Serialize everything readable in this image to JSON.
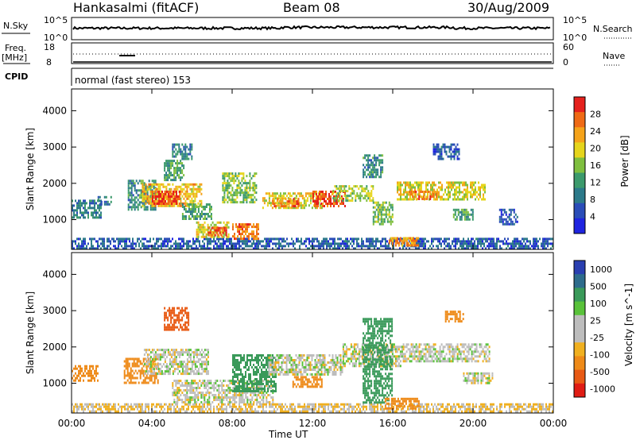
{
  "header": {
    "station": "Hankasalmi (fitACF)",
    "beam": "Beam 08",
    "date": "30/Aug/2009"
  },
  "summary": {
    "left_label_top": "N.Sky",
    "left_scale_top": "10^5",
    "left_scale_bottom": "10^0",
    "right_scale_top": "10^5",
    "right_scale_bottom": "10^0",
    "right_label": "N.Search",
    "freq_label_1": "Freq.",
    "freq_label_2": "[MHz]",
    "freq_top": "18",
    "freq_bottom": "8",
    "nave_top": "60",
    "nave_bottom": "0",
    "nave_label": "Nave",
    "cpid_label": "CPID",
    "cpid_text": "normal (fast stereo) 153"
  },
  "axes": {
    "xlabel": "Time UT",
    "ylabel": "Slant Range [km]"
  },
  "colors": {
    "power": [
      "#1f24e0",
      "#2a4db8",
      "#2c7a8a",
      "#3c9a6c",
      "#7fbf3f",
      "#e6d51c",
      "#f5a31a",
      "#ef6a15",
      "#e5211d"
    ],
    "velocity_pos": [
      "#2a3fb0",
      "#2e6c8c",
      "#3a9a5a",
      "#59c23a"
    ],
    "velocity_grey": "#bdbdbd",
    "velocity_neg": [
      "#f0b020",
      "#ee8a18",
      "#e85a14",
      "#e01c14"
    ]
  },
  "chart_data": [
    {
      "type": "heatmap",
      "name": "power",
      "colorbar_label": "Power [dB]",
      "colorbar_ticks": [
        "4",
        "8",
        "12",
        "16",
        "20",
        "24",
        "28"
      ],
      "x_ticks": [
        "00:00",
        "04:00",
        "08:00",
        "12:00",
        "16:00",
        "20:00",
        "00:00"
      ],
      "y_ticks": [
        "1000",
        "2000",
        "3000",
        "4000"
      ],
      "xlim_hours": [
        0,
        24
      ],
      "ylim_km": [
        180,
        4600
      ],
      "echo_regions": [
        {
          "t0": 0.0,
          "t1": 24.0,
          "r0": 200,
          "r1": 500,
          "power": 6
        },
        {
          "t0": 0.0,
          "t1": 1.5,
          "r0": 1050,
          "r1": 1550,
          "power": 9
        },
        {
          "t0": 1.3,
          "t1": 2.0,
          "r0": 1400,
          "r1": 1650,
          "power": 8
        },
        {
          "t0": 2.8,
          "t1": 4.2,
          "r0": 1300,
          "r1": 2100,
          "power": 10
        },
        {
          "t0": 3.5,
          "t1": 6.5,
          "r0": 1400,
          "r1": 2000,
          "power": 20
        },
        {
          "t0": 4.0,
          "t1": 5.4,
          "r0": 1450,
          "r1": 1800,
          "power": 26
        },
        {
          "t0": 4.6,
          "t1": 5.6,
          "r0": 2100,
          "r1": 2650,
          "power": 12
        },
        {
          "t0": 5.0,
          "t1": 6.0,
          "r0": 2700,
          "r1": 3100,
          "power": 9
        },
        {
          "t0": 5.5,
          "t1": 7.0,
          "r0": 1050,
          "r1": 1450,
          "power": 12
        },
        {
          "t0": 6.2,
          "t1": 7.8,
          "r0": 500,
          "r1": 950,
          "power": 18
        },
        {
          "t0": 6.8,
          "t1": 7.7,
          "r0": 550,
          "r1": 800,
          "power": 26
        },
        {
          "t0": 7.5,
          "t1": 9.2,
          "r0": 1500,
          "r1": 2300,
          "power": 14
        },
        {
          "t0": 8.0,
          "t1": 9.3,
          "r0": 500,
          "r1": 900,
          "power": 24
        },
        {
          "t0": 9.5,
          "t1": 12.5,
          "r0": 1300,
          "r1": 1750,
          "power": 18
        },
        {
          "t0": 10.0,
          "t1": 11.3,
          "r0": 1350,
          "r1": 1600,
          "power": 24
        },
        {
          "t0": 12.0,
          "t1": 13.6,
          "r0": 1400,
          "r1": 1800,
          "power": 26
        },
        {
          "t0": 13.0,
          "t1": 15.0,
          "r0": 1500,
          "r1": 1950,
          "power": 16
        },
        {
          "t0": 14.5,
          "t1": 15.5,
          "r0": 2200,
          "r1": 2800,
          "power": 10
        },
        {
          "t0": 15.0,
          "t1": 16.0,
          "r0": 900,
          "r1": 1500,
          "power": 14
        },
        {
          "t0": 15.8,
          "t1": 17.3,
          "r0": 300,
          "r1": 520,
          "power": 22
        },
        {
          "t0": 16.2,
          "t1": 20.6,
          "r0": 1550,
          "r1": 2050,
          "power": 18
        },
        {
          "t0": 16.8,
          "t1": 18.2,
          "r0": 1550,
          "r1": 1800,
          "power": 24
        },
        {
          "t0": 19.0,
          "t1": 20.0,
          "r0": 1000,
          "r1": 1300,
          "power": 12
        },
        {
          "t0": 18.0,
          "t1": 19.3,
          "r0": 2700,
          "r1": 3100,
          "power": 6
        },
        {
          "t0": 21.3,
          "t1": 22.2,
          "r0": 900,
          "r1": 1300,
          "power": 5
        }
      ]
    },
    {
      "type": "heatmap",
      "name": "velocity",
      "colorbar_label": "Velocity [m s^-1]",
      "colorbar_ticks": [
        "1000",
        "500",
        "100",
        "25",
        "-25",
        "-100",
        "-500",
        "-1000"
      ],
      "x_ticks": [
        "00:00",
        "04:00",
        "08:00",
        "12:00",
        "16:00",
        "20:00",
        "00:00"
      ],
      "y_ticks": [
        "1000",
        "2000",
        "3000",
        "4000"
      ],
      "xlim_hours": [
        0,
        24
      ],
      "ylim_km": [
        180,
        4600
      ],
      "echo_regions": [
        {
          "t0": 0.0,
          "t1": 24.0,
          "r0": 200,
          "r1": 450,
          "velocity": -30
        },
        {
          "t0": 0.0,
          "t1": 1.3,
          "r0": 1100,
          "r1": 1500,
          "velocity": -150
        },
        {
          "t0": 2.6,
          "t1": 4.3,
          "r0": 1000,
          "r1": 1700,
          "velocity": -150
        },
        {
          "t0": 3.6,
          "t1": 6.8,
          "r0": 1250,
          "r1": 1950,
          "velocity": 0
        },
        {
          "t0": 4.6,
          "t1": 5.8,
          "r0": 2500,
          "r1": 3100,
          "velocity": -300
        },
        {
          "t0": 5.0,
          "t1": 10.0,
          "r0": 500,
          "r1": 1100,
          "velocity": 0
        },
        {
          "t0": 8.0,
          "t1": 10.2,
          "r0": 800,
          "r1": 1800,
          "velocity": 150
        },
        {
          "t0": 9.8,
          "t1": 13.5,
          "r0": 1250,
          "r1": 1800,
          "velocity": 0
        },
        {
          "t0": 11.0,
          "t1": 12.5,
          "r0": 900,
          "r1": 1200,
          "velocity": -150
        },
        {
          "t0": 13.5,
          "t1": 16.5,
          "r0": 1500,
          "r1": 2100,
          "velocity": 0
        },
        {
          "t0": 14.5,
          "t1": 16.0,
          "r0": 500,
          "r1": 2800,
          "velocity": 200
        },
        {
          "t0": 16.5,
          "t1": 20.8,
          "r0": 1600,
          "r1": 2100,
          "velocity": 0
        },
        {
          "t0": 15.6,
          "t1": 17.3,
          "r0": 300,
          "r1": 600,
          "velocity": -150
        },
        {
          "t0": 18.6,
          "t1": 19.5,
          "r0": 2700,
          "r1": 3000,
          "velocity": -150
        },
        {
          "t0": 19.5,
          "t1": 21.0,
          "r0": 1000,
          "r1": 1300,
          "velocity": 0
        }
      ]
    }
  ]
}
